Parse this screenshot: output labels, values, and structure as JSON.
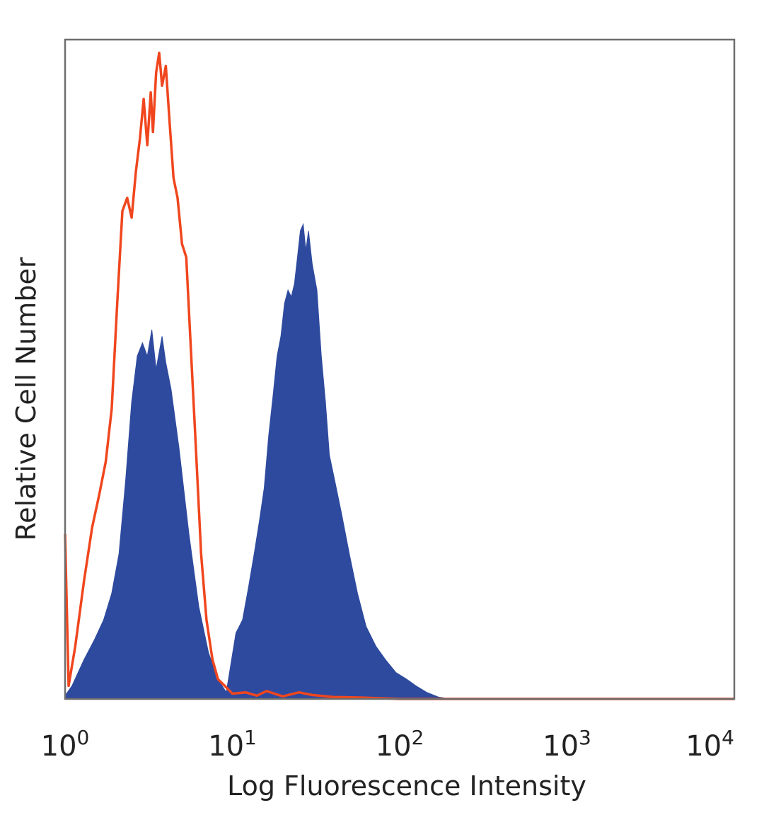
{
  "chart_data": {
    "type": "area",
    "title": "",
    "xlabel": "Log Fluorescence Intensity",
    "ylabel": "Relative Cell Number",
    "x_scale": "log",
    "xlim": [
      1,
      10000
    ],
    "ylim": [
      0,
      1
    ],
    "grid": false,
    "legend": "none",
    "x_ticks": [
      {
        "base": "10",
        "exp": "0",
        "value": 1
      },
      {
        "base": "10",
        "exp": "1",
        "value": 10
      },
      {
        "base": "10",
        "exp": "2",
        "value": 100
      },
      {
        "base": "10",
        "exp": "3",
        "value": 1000
      },
      {
        "base": "10",
        "exp": "4",
        "value": 10000
      }
    ],
    "series": [
      {
        "style": "filled",
        "color": "#2e4a9e",
        "points": [
          [
            1.0,
            0.005
          ],
          [
            1.1,
            0.02
          ],
          [
            1.3,
            0.06
          ],
          [
            1.5,
            0.09
          ],
          [
            1.7,
            0.12
          ],
          [
            1.9,
            0.16
          ],
          [
            2.1,
            0.22
          ],
          [
            2.3,
            0.33
          ],
          [
            2.5,
            0.45
          ],
          [
            2.7,
            0.52
          ],
          [
            2.9,
            0.54
          ],
          [
            3.1,
            0.52
          ],
          [
            3.3,
            0.56
          ],
          [
            3.5,
            0.5
          ],
          [
            3.8,
            0.55
          ],
          [
            4.0,
            0.51
          ],
          [
            4.3,
            0.47
          ],
          [
            4.8,
            0.38
          ],
          [
            5.5,
            0.25
          ],
          [
            6.3,
            0.14
          ],
          [
            7.2,
            0.07
          ],
          [
            8.2,
            0.03
          ],
          [
            9.2,
            0.01
          ],
          [
            10.5,
            0.1
          ],
          [
            11.5,
            0.12
          ],
          [
            12.5,
            0.17
          ],
          [
            13.5,
            0.22
          ],
          [
            14.5,
            0.27
          ],
          [
            15.5,
            0.32
          ],
          [
            16.5,
            0.4
          ],
          [
            17.5,
            0.46
          ],
          [
            18.5,
            0.52
          ],
          [
            19.5,
            0.55
          ],
          [
            20.5,
            0.6
          ],
          [
            21.5,
            0.62
          ],
          [
            22.5,
            0.61
          ],
          [
            23.5,
            0.63
          ],
          [
            24.5,
            0.67
          ],
          [
            25.5,
            0.71
          ],
          [
            26.5,
            0.72
          ],
          [
            27.5,
            0.68
          ],
          [
            28.5,
            0.71
          ],
          [
            30.0,
            0.66
          ],
          [
            32.0,
            0.62
          ],
          [
            34.0,
            0.52
          ],
          [
            36.0,
            0.45
          ],
          [
            38.0,
            0.37
          ],
          [
            41.0,
            0.33
          ],
          [
            45.0,
            0.28
          ],
          [
            50.0,
            0.22
          ],
          [
            56.0,
            0.16
          ],
          [
            63.0,
            0.11
          ],
          [
            72.0,
            0.08
          ],
          [
            82.0,
            0.06
          ],
          [
            95.0,
            0.04
          ],
          [
            110.0,
            0.03
          ],
          [
            125.0,
            0.02
          ],
          [
            145.0,
            0.01
          ],
          [
            170.0,
            0.003
          ],
          [
            200.0,
            0.0
          ]
        ]
      },
      {
        "style": "line",
        "color": "#f0461e",
        "points": [
          [
            1.0,
            0.25
          ],
          [
            1.05,
            0.02
          ],
          [
            1.15,
            0.08
          ],
          [
            1.3,
            0.18
          ],
          [
            1.45,
            0.26
          ],
          [
            1.6,
            0.31
          ],
          [
            1.75,
            0.36
          ],
          [
            1.9,
            0.44
          ],
          [
            2.05,
            0.6
          ],
          [
            2.2,
            0.74
          ],
          [
            2.35,
            0.76
          ],
          [
            2.5,
            0.73
          ],
          [
            2.65,
            0.8
          ],
          [
            2.8,
            0.85
          ],
          [
            2.95,
            0.91
          ],
          [
            3.1,
            0.84
          ],
          [
            3.25,
            0.92
          ],
          [
            3.35,
            0.86
          ],
          [
            3.5,
            0.95
          ],
          [
            3.65,
            0.98
          ],
          [
            3.8,
            0.93
          ],
          [
            4.0,
            0.96
          ],
          [
            4.2,
            0.88
          ],
          [
            4.45,
            0.79
          ],
          [
            4.7,
            0.76
          ],
          [
            5.0,
            0.69
          ],
          [
            5.3,
            0.67
          ],
          [
            5.6,
            0.55
          ],
          [
            6.0,
            0.4
          ],
          [
            6.5,
            0.22
          ],
          [
            7.0,
            0.12
          ],
          [
            7.6,
            0.06
          ],
          [
            8.2,
            0.03
          ],
          [
            9.0,
            0.02
          ],
          [
            10.0,
            0.008
          ],
          [
            12.0,
            0.01
          ],
          [
            14.0,
            0.005
          ],
          [
            16.0,
            0.012
          ],
          [
            20.0,
            0.004
          ],
          [
            25.0,
            0.01
          ],
          [
            30.0,
            0.006
          ],
          [
            40.0,
            0.003
          ],
          [
            60.0,
            0.002
          ],
          [
            100.0,
            0.0
          ],
          [
            1000.0,
            0.0
          ],
          [
            10000.0,
            0.0
          ]
        ]
      }
    ]
  }
}
